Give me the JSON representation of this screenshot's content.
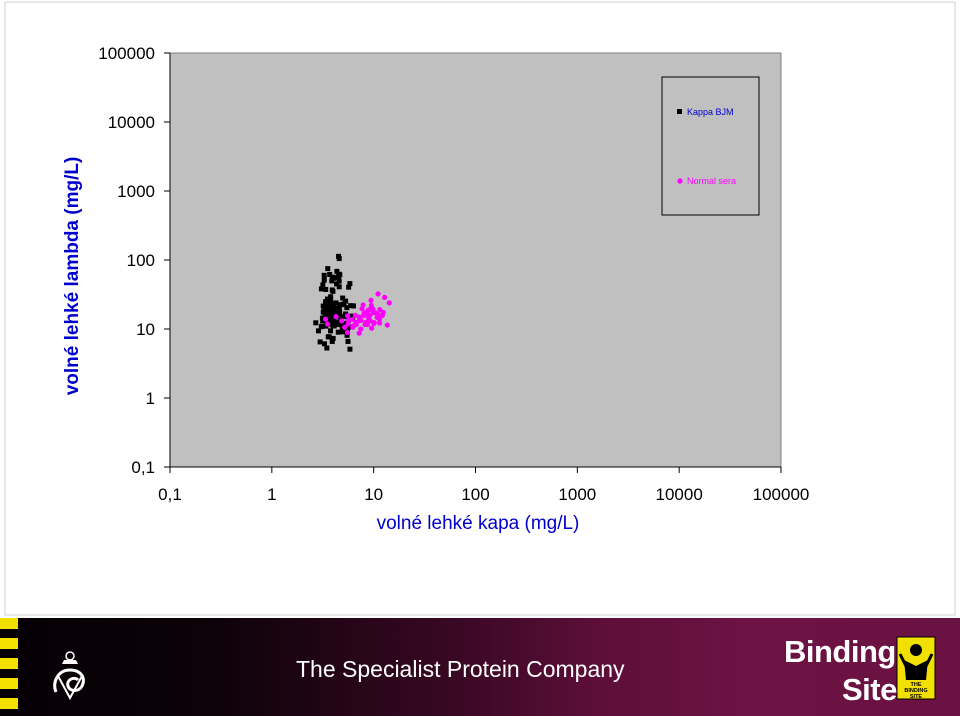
{
  "chart_data": {
    "type": "scatter",
    "title": "",
    "xlabel": "volné lehké kapa (mg/L)",
    "ylabel": "volné lehké lambda (mg/L)",
    "x_scale": "log",
    "y_scale": "log",
    "xlim": [
      0.1,
      100000
    ],
    "ylim": [
      0.1,
      100000
    ],
    "x_ticks": [
      "0,1",
      "1",
      "10",
      "100",
      "1000",
      "10000",
      "100000"
    ],
    "y_ticks": [
      "0,1",
      "1",
      "10",
      "100",
      "1000",
      "10000",
      "100000"
    ],
    "grid": false,
    "plot_background": "#c0c0c0",
    "legend_position": "top-right",
    "series": [
      {
        "name": "Kappa BJM",
        "marker": "square",
        "color": "#000000",
        "points": [
          [
            3.64,
            18.5
          ],
          [
            3.44,
            17.7
          ],
          [
            4.13,
            17.7
          ],
          [
            4.21,
            15.0
          ],
          [
            3.31,
            13.9
          ],
          [
            4.05,
            13.3
          ],
          [
            3.95,
            17.7
          ],
          [
            3.42,
            15.3
          ],
          [
            4.83,
            11.6
          ],
          [
            3.98,
            11.1
          ],
          [
            4.6,
            19.5
          ],
          [
            4.76,
            14.7
          ],
          [
            3.7,
            13.2
          ],
          [
            3.77,
            11.8
          ],
          [
            5.16,
            9.3
          ],
          [
            4.17,
            20.0
          ],
          [
            5.31,
            16.5
          ],
          [
            4.65,
            15.4
          ],
          [
            3.12,
            11.0
          ],
          [
            5.71,
            10.7
          ],
          [
            2.7,
            12.3
          ],
          [
            3.43,
            22.1
          ],
          [
            3.06,
            10.8
          ],
          [
            4.0,
            23.5
          ],
          [
            4.92,
            10.1
          ],
          [
            4.96,
            9.1
          ],
          [
            3.29,
            6.1
          ],
          [
            5.23,
            12.1
          ],
          [
            4.43,
            11.7
          ],
          [
            5.48,
            8.1
          ],
          [
            4.55,
            11.8
          ],
          [
            6.34,
            21.6
          ],
          [
            3.4,
            11.0
          ],
          [
            4.64,
            22.4
          ],
          [
            3.48,
            12.5
          ],
          [
            4.57,
            16.4
          ],
          [
            5.54,
            9.0
          ],
          [
            3.58,
            7.7
          ],
          [
            3.94,
            12.0
          ],
          [
            6.0,
            15.4
          ],
          [
            2.87,
            9.4
          ],
          [
            3.77,
            9.4
          ],
          [
            3.92,
            6.6
          ],
          [
            4.55,
            15.0
          ],
          [
            3.2,
            17.6
          ],
          [
            3.46,
            19.0
          ],
          [
            3.34,
            17.0
          ],
          [
            3.7,
            20.8
          ],
          [
            3.97,
            20.3
          ],
          [
            3.14,
            14.4
          ],
          [
            6.22,
            14.5
          ],
          [
            3.82,
            17.6
          ],
          [
            4.55,
            11.8
          ],
          [
            3.78,
            29.3
          ],
          [
            3.37,
            24.9
          ],
          [
            3.16,
            13.2
          ],
          [
            3.52,
            27.2
          ],
          [
            4.36,
            11.6
          ],
          [
            3.58,
            16.0
          ],
          [
            4.49,
            9.0
          ],
          [
            4.38,
            12.5
          ],
          [
            5.64,
            13.4
          ],
          [
            3.28,
            20.7
          ],
          [
            3.17,
            43.5
          ],
          [
            3.92,
            36.8
          ],
          [
            4.0,
            56.3
          ],
          [
            3.88,
            49.8
          ],
          [
            5.84,
            45.5
          ],
          [
            4.07,
            54.4
          ],
          [
            2.98,
            6.5
          ],
          [
            4.32,
            45.0
          ],
          [
            5.68,
            40.4
          ],
          [
            3.92,
            55.5
          ],
          [
            4.58,
            49.4
          ],
          [
            4.53,
            58.0
          ],
          [
            4.52,
            113
          ],
          [
            3.98,
            35.1
          ],
          [
            3.07,
            38.1
          ],
          [
            5.45,
            20.4
          ],
          [
            3.68,
            19.3
          ],
          [
            5.29,
            15.9
          ],
          [
            5.11,
            23.1
          ],
          [
            3.4,
            14.4
          ],
          [
            3.66,
            7.7
          ],
          [
            4.0,
            7.3
          ],
          [
            4.86,
            22.5
          ],
          [
            4.5,
            55.9
          ],
          [
            3.2,
            21.5
          ],
          [
            3.46,
            16.2
          ],
          [
            3.47,
            5.3
          ],
          [
            3.59,
            24.3
          ],
          [
            3.38,
            37.4
          ],
          [
            4.96,
            28.1
          ],
          [
            4.65,
            61.0
          ],
          [
            4.28,
            23.9
          ],
          [
            5.05,
            15.1
          ],
          [
            3.54,
            75.0
          ],
          [
            3.7,
            61.7
          ],
          [
            4.09,
            11.1
          ],
          [
            3.94,
            14.3
          ],
          [
            5.6,
            6.6
          ],
          [
            4.57,
            62.3
          ],
          [
            3.78,
            26.6
          ],
          [
            5.85,
            5.1
          ],
          [
            4.59,
            40.9
          ],
          [
            3.94,
            15.9
          ],
          [
            4.35,
            68.5
          ],
          [
            3.61,
            13.7
          ],
          [
            3.59,
            17.4
          ],
          [
            5.3,
            25.4
          ],
          [
            5.94,
            21.8
          ],
          [
            4.59,
            105
          ],
          [
            4.64,
            17.5
          ],
          [
            3.27,
            59.9
          ],
          [
            3.27,
            51.1
          ]
        ]
      },
      {
        "name": "Normal sera",
        "marker": "circle",
        "color": "#ff00ff",
        "points": [
          [
            3.53,
            11.8
          ],
          [
            3.37,
            13.9
          ],
          [
            4.27,
            15.1
          ],
          [
            4.86,
            13.1
          ],
          [
            5.65,
            13.4
          ],
          [
            6.14,
            13.8
          ],
          [
            7.69,
            19.7
          ],
          [
            8.27,
            16.4
          ],
          [
            9.19,
            19.2
          ],
          [
            9.55,
            10.3
          ],
          [
            10.07,
            12.0
          ],
          [
            9.84,
            19.4
          ],
          [
            8.99,
            15.9
          ],
          [
            8.11,
            17.1
          ],
          [
            7.88,
            22.3
          ],
          [
            7.5,
            13.3
          ],
          [
            7.48,
            10.0
          ],
          [
            5.53,
            8.9
          ],
          [
            6.22,
            10.6
          ],
          [
            6.71,
            12.5
          ],
          [
            7.2,
            14.9
          ],
          [
            6.76,
            11.6
          ],
          [
            5.55,
            15.6
          ],
          [
            6.61,
            15.8
          ],
          [
            6.4,
            11.2
          ],
          [
            7.2,
            8.7
          ],
          [
            5.61,
            11.8
          ],
          [
            5.2,
            10.6
          ],
          [
            11.41,
            13.8
          ],
          [
            11.47,
            19.1
          ],
          [
            12.16,
            15.7
          ],
          [
            14.23,
            23.9
          ],
          [
            11.04,
            32.3
          ],
          [
            9.42,
            26.0
          ],
          [
            12.81,
            28.7
          ],
          [
            9.23,
            16.0
          ],
          [
            8.24,
            11.6
          ],
          [
            8.97,
            14.5
          ],
          [
            10.13,
            12.4
          ],
          [
            11.06,
            16.2
          ],
          [
            12.42,
            17.4
          ],
          [
            13.61,
            11.4
          ],
          [
            10.84,
            14.7
          ],
          [
            10.38,
            17.1
          ],
          [
            8.78,
            18.6
          ],
          [
            7.97,
            15.7
          ],
          [
            7.25,
            13.3
          ],
          [
            8.39,
            12.5
          ],
          [
            8.69,
            11.6
          ],
          [
            9.24,
            13.1
          ],
          [
            9.49,
            21.9
          ],
          [
            10.05,
            17.5
          ],
          [
            11.44,
            12.2
          ],
          [
            8.93,
            14.4
          ]
        ]
      }
    ]
  },
  "footer": {
    "tagline": "The Specialist Protein Company",
    "brand_line1": "Binding",
    "brand_line2": "Site",
    "badge_label_1": "THE",
    "badge_label_2": "BINDING",
    "badge_label_3": "SITE",
    "stripe_color": "#f2e000"
  }
}
